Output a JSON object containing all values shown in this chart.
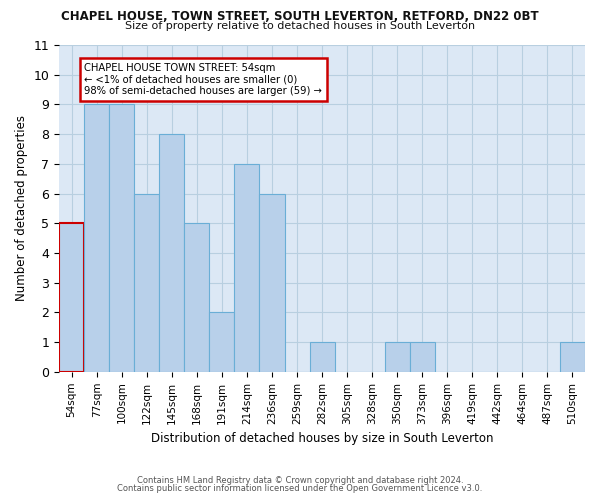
{
  "title": "CHAPEL HOUSE, TOWN STREET, SOUTH LEVERTON, RETFORD, DN22 0BT",
  "subtitle": "Size of property relative to detached houses in South Leverton",
  "xlabel": "Distribution of detached houses by size in South Leverton",
  "ylabel": "Number of detached properties",
  "categories": [
    "54sqm",
    "77sqm",
    "100sqm",
    "122sqm",
    "145sqm",
    "168sqm",
    "191sqm",
    "214sqm",
    "236sqm",
    "259sqm",
    "282sqm",
    "305sqm",
    "328sqm",
    "350sqm",
    "373sqm",
    "396sqm",
    "419sqm",
    "442sqm",
    "464sqm",
    "487sqm",
    "510sqm"
  ],
  "values": [
    5,
    9,
    9,
    6,
    8,
    5,
    2,
    7,
    6,
    0,
    1,
    0,
    0,
    1,
    1,
    0,
    0,
    0,
    0,
    0,
    1
  ],
  "highlight_index": 0,
  "bar_color": "#b8d0ea",
  "bar_edge_color": "#6aaed6",
  "highlight_bar_edge_color": "#cc0000",
  "background_color": "#ffffff",
  "plot_bg_color": "#dce8f5",
  "grid_color": "#b8cfe0",
  "ylim": [
    0,
    11
  ],
  "yticks": [
    0,
    1,
    2,
    3,
    4,
    5,
    6,
    7,
    8,
    9,
    10,
    11
  ],
  "annotation_box_text": "CHAPEL HOUSE TOWN STREET: 54sqm\n← <1% of detached houses are smaller (0)\n98% of semi-detached houses are larger (59) →",
  "annotation_box_color": "#ffffff",
  "annotation_box_edge_color": "#cc0000",
  "footer_line1": "Contains HM Land Registry data © Crown copyright and database right 2024.",
  "footer_line2": "Contains public sector information licensed under the Open Government Licence v3.0."
}
